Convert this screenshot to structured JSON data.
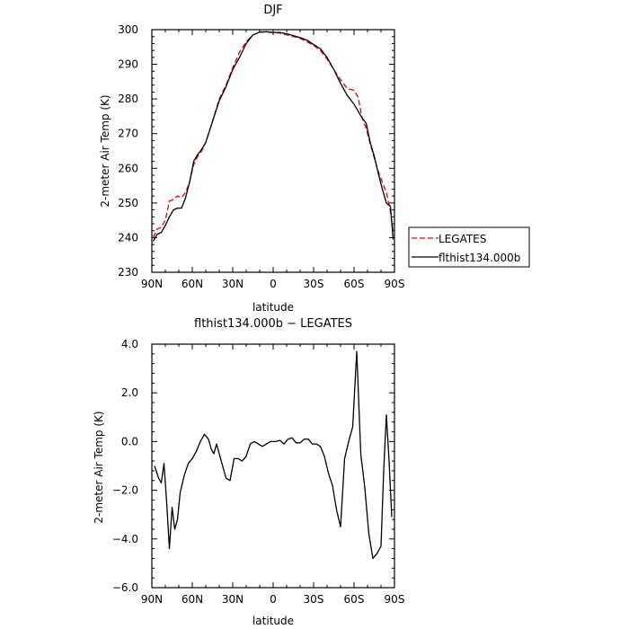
{
  "chart_data": [
    {
      "type": "line",
      "title": "DJF",
      "xlabel": "latitude",
      "ylabel": "2-meter Air Temp (K)",
      "xlim": [
        90,
        -90
      ],
      "ylim": [
        230,
        300
      ],
      "x_ticks": [
        90,
        60,
        30,
        0,
        -30,
        -60,
        -90
      ],
      "x_tick_labels": [
        "90N",
        "60N",
        "30N",
        "0",
        "30S",
        "60S",
        "90S"
      ],
      "y_ticks": [
        230,
        240,
        250,
        260,
        270,
        280,
        290,
        300
      ],
      "y_tick_labels": [
        "230",
        "240",
        "250",
        "260",
        "270",
        "280",
        "290",
        "300"
      ],
      "legend_position": "right",
      "series": [
        {
          "name": "LEGATES",
          "color": "#e00000",
          "dash": "dashed",
          "x": [
            89,
            86,
            83,
            80,
            77,
            74,
            71,
            68,
            65,
            62,
            59,
            56,
            53,
            50,
            45,
            40,
            35,
            30,
            25,
            20,
            15,
            10,
            5,
            0,
            -5,
            -10,
            -15,
            -20,
            -25,
            -30,
            -35,
            -40,
            -45,
            -50,
            -55,
            -60,
            -63,
            -66,
            -69,
            -72,
            -75,
            -78,
            -81,
            -84,
            -87,
            -89
          ],
          "values": [
            240,
            242.5,
            243,
            245,
            250.5,
            251,
            252,
            251.5,
            253,
            256,
            261,
            263.5,
            265,
            267.5,
            273.5,
            280,
            284,
            289,
            293.5,
            296.5,
            298.5,
            299.3,
            299.3,
            299.2,
            299.0,
            298.5,
            298.0,
            297.5,
            296.5,
            295.5,
            294,
            291.5,
            288.5,
            285.5,
            283,
            282.5,
            280.5,
            274.5,
            271.5,
            267,
            263,
            259,
            256,
            253,
            247.5,
            242
          ]
        },
        {
          "name": "flthist134.000b",
          "color": "#000000",
          "dash": "solid",
          "x": [
            89,
            86,
            83,
            80,
            77,
            74,
            71,
            68,
            65,
            62,
            59,
            56,
            53,
            50,
            45,
            40,
            35,
            30,
            25,
            20,
            15,
            10,
            5,
            0,
            -5,
            -10,
            -15,
            -20,
            -25,
            -30,
            -35,
            -40,
            -45,
            -50,
            -55,
            -60,
            -63,
            -66,
            -69,
            -72,
            -75,
            -78,
            -81,
            -84,
            -87,
            -89
          ],
          "values": [
            239,
            241,
            241.5,
            243.5,
            246,
            248,
            248.5,
            248.5,
            251.5,
            256,
            262,
            264,
            265.5,
            267.5,
            273.5,
            279.5,
            283.5,
            288.5,
            292,
            296,
            298.5,
            299.3,
            299.4,
            299.2,
            299.2,
            298.8,
            298.3,
            297.7,
            297.0,
            295.7,
            294.5,
            292.0,
            288.5,
            284.5,
            281,
            278.5,
            276.5,
            274.5,
            273,
            267.5,
            263.5,
            258.5,
            254,
            250,
            249,
            239.5
          ]
        }
      ]
    },
    {
      "type": "line",
      "title": "flthist134.000b − LEGATES",
      "xlabel": "latitude",
      "ylabel": "2-meter Air Temp (K)",
      "xlim": [
        90,
        -90
      ],
      "ylim": [
        -6,
        4
      ],
      "x_ticks": [
        90,
        60,
        30,
        0,
        -30,
        -60,
        -90
      ],
      "x_tick_labels": [
        "90N",
        "60N",
        "30N",
        "0",
        "30S",
        "60S",
        "90S"
      ],
      "y_ticks": [
        -6,
        -4,
        -2,
        0,
        2,
        4
      ],
      "y_tick_labels": [
        "−6.0",
        "−4.0",
        "−2.0",
        "0.0",
        "2.0",
        "4.0"
      ],
      "series": [
        {
          "color": "#000000",
          "dash": "solid",
          "x": [
            88,
            85,
            83,
            81,
            79,
            77,
            75,
            73,
            71,
            69,
            66,
            63,
            60,
            57,
            54,
            51,
            48,
            46,
            44,
            42,
            40,
            38,
            35,
            32,
            29,
            26,
            23,
            20,
            17,
            14,
            11,
            8,
            5,
            2,
            0,
            -2,
            -5,
            -8,
            -11,
            -14,
            -17,
            -20,
            -23,
            -26,
            -29,
            -32,
            -35,
            -38,
            -41,
            -44,
            -47,
            -50,
            -53,
            -56,
            -59,
            -62,
            -65,
            -68,
            -71,
            -74,
            -77,
            -80,
            -82,
            -84,
            -86,
            -88
          ],
          "values": [
            -1.0,
            -1.5,
            -1.7,
            -0.9,
            -2.5,
            -4.4,
            -2.7,
            -3.6,
            -3.2,
            -2.1,
            -1.4,
            -0.9,
            -0.7,
            -0.4,
            0.0,
            0.3,
            0.1,
            -0.3,
            -0.5,
            -0.1,
            -0.5,
            -0.9,
            -1.5,
            -1.6,
            -0.7,
            -0.7,
            -0.8,
            -0.6,
            -0.1,
            0.0,
            -0.1,
            -0.2,
            -0.1,
            0.0,
            0.0,
            0.0,
            0.05,
            -0.1,
            0.1,
            0.15,
            -0.05,
            -0.05,
            0.1,
            0.1,
            -0.1,
            -0.1,
            -0.2,
            -0.6,
            -1.3,
            -1.8,
            -2.8,
            -3.5,
            -0.7,
            0.0,
            0.6,
            3.7,
            -0.5,
            -1.9,
            -3.8,
            -4.8,
            -4.6,
            -4.3,
            -1.2,
            1.1,
            -0.8,
            -3.1
          ]
        }
      ]
    }
  ]
}
